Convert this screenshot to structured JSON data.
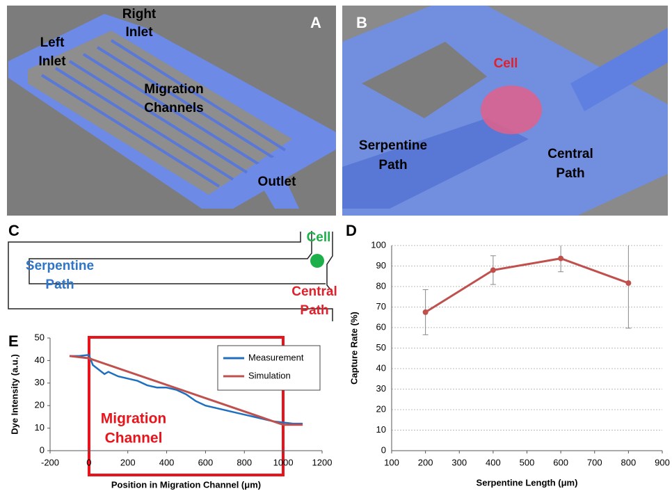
{
  "illustrations": [
    {
      "label": "A",
      "annotations": [
        {
          "lines": [
            "Right",
            "Inlet"
          ]
        },
        {
          "lines": [
            "Left",
            "Inlet"
          ]
        },
        {
          "lines": [
            "Migration",
            "Channels"
          ]
        },
        {
          "lines": [
            "Outlet"
          ]
        }
      ]
    },
    {
      "label": "B",
      "annotations": [
        {
          "lines": [
            "Cell"
          ]
        },
        {
          "lines": [
            "Serpentine",
            "Path"
          ]
        },
        {
          "lines": [
            "Central",
            "Path"
          ]
        }
      ]
    },
    {
      "label": "C",
      "annotations": [
        {
          "lines": [
            "Cell"
          ]
        },
        {
          "lines": [
            "Serpentine",
            "Path"
          ]
        },
        {
          "lines": [
            "Central",
            "Path"
          ]
        }
      ]
    }
  ],
  "chart_data": [
    {
      "label": "D",
      "type": "line",
      "xlabel": "Serpentine Length (μm)",
      "ylabel": "Capture Rate (%)",
      "xlim": [
        100,
        900
      ],
      "xticks": [
        100,
        200,
        300,
        400,
        500,
        600,
        700,
        800,
        900
      ],
      "ylim": [
        0,
        100
      ],
      "yticks": [
        0,
        10,
        20,
        30,
        40,
        50,
        60,
        70,
        80,
        90,
        100
      ],
      "grid": true,
      "series": [
        {
          "color": "#c0504d",
          "x": [
            200,
            400,
            600,
            800
          ],
          "values": [
            67.5,
            88,
            93.7,
            81.7
          ],
          "errors": [
            11,
            7,
            6.5,
            22
          ]
        }
      ]
    },
    {
      "label": "E",
      "type": "line",
      "xlabel": "Position in Migration Channel (μm)",
      "ylabel": "Dye Intensity (a.u.)",
      "xlim": [
        -200,
        1200
      ],
      "xticks": [
        -200,
        0,
        200,
        400,
        600,
        800,
        1000,
        1200
      ],
      "ylim": [
        0,
        50
      ],
      "yticks": [
        0,
        10,
        20,
        30,
        40,
        50
      ],
      "grid": false,
      "legend": "upper right",
      "annotation": {
        "lines": [
          "Migration",
          "Channel"
        ]
      },
      "series": [
        {
          "name": "Measurement",
          "color": "#1f6fc0",
          "x": [
            -100,
            -50,
            0,
            20,
            50,
            80,
            100,
            150,
            200,
            250,
            300,
            350,
            400,
            450,
            500,
            550,
            600,
            650,
            700,
            750,
            800,
            850,
            900,
            950,
            1000,
            1050,
            1100
          ],
          "values": [
            42,
            42,
            42.5,
            38,
            36,
            34,
            35,
            33,
            32,
            31,
            29,
            28,
            28,
            27,
            25,
            22,
            20,
            19,
            18,
            17,
            16,
            15,
            14,
            13,
            12.5,
            12,
            12
          ]
        },
        {
          "name": "Simulation",
          "color": "#c0504d",
          "x": [
            -100,
            0,
            1000,
            1100
          ],
          "values": [
            42,
            41,
            11.5,
            11.5
          ]
        }
      ]
    }
  ]
}
